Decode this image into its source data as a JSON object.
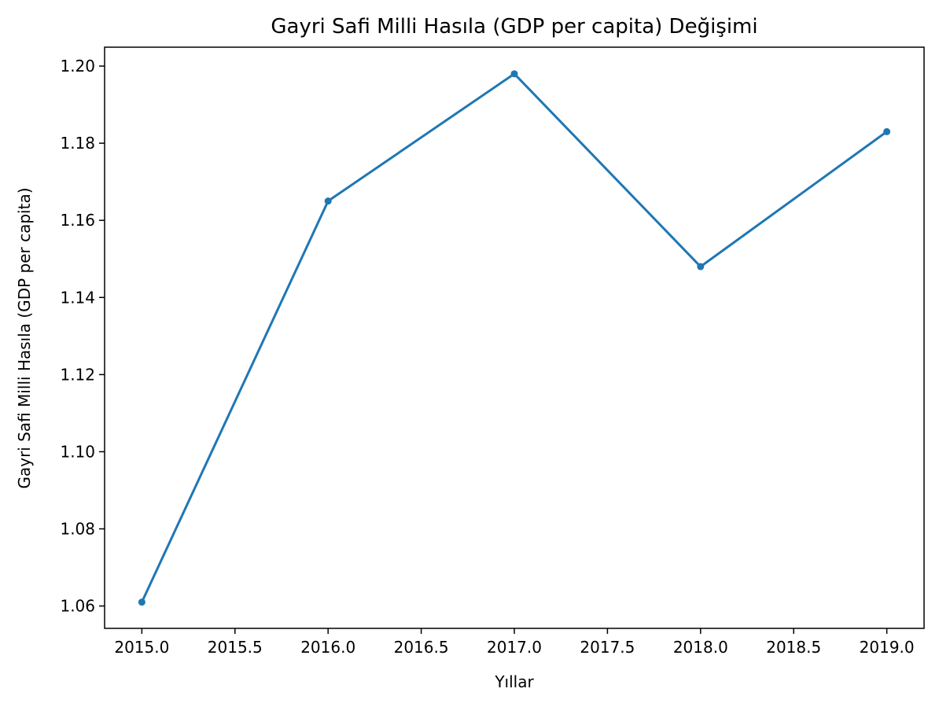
{
  "chart_data": {
    "type": "line",
    "title": "Gayri Safi Milli Hasıla (GDP per capita) Değişimi",
    "xlabel": "Yıllar",
    "ylabel": "Gayri Safi Milli Hasıla (GDP per capita)",
    "xlim": [
      2014.8,
      2019.2
    ],
    "ylim": [
      1.0542,
      1.2049
    ],
    "x_ticks": [
      2015.0,
      2015.5,
      2016.0,
      2016.5,
      2017.0,
      2017.5,
      2018.0,
      2018.5,
      2019.0
    ],
    "x_tick_labels": [
      "2015.0",
      "2015.5",
      "2016.0",
      "2016.5",
      "2017.0",
      "2017.5",
      "2018.0",
      "2018.5",
      "2019.0"
    ],
    "y_ticks": [
      1.06,
      1.08,
      1.1,
      1.12,
      1.14,
      1.16,
      1.18,
      1.2
    ],
    "y_tick_labels": [
      "1.06",
      "1.08",
      "1.10",
      "1.12",
      "1.14",
      "1.16",
      "1.18",
      "1.20"
    ],
    "grid": false,
    "series": [
      {
        "x": [
          2015,
          2016,
          2017,
          2018,
          2019
        ],
        "values": [
          1.061,
          1.165,
          1.198,
          1.148,
          1.183
        ],
        "color": "#1f77b4",
        "marker": "circle"
      }
    ]
  }
}
